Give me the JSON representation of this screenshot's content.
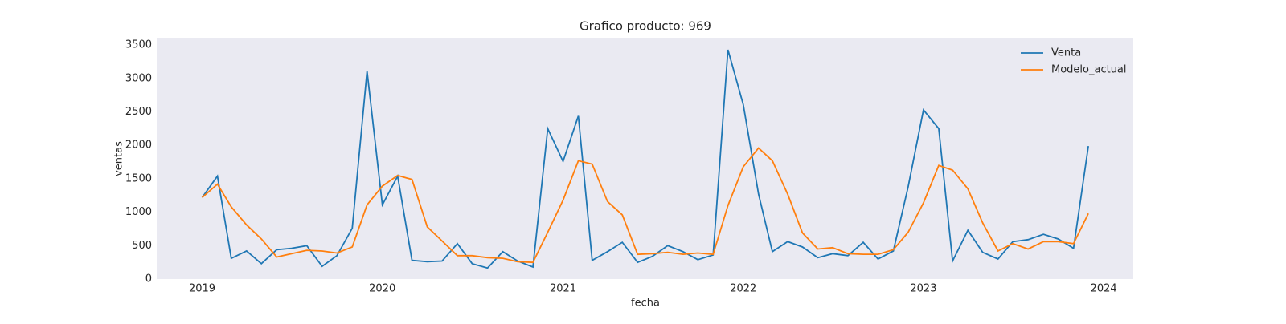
{
  "chart_data": {
    "type": "line",
    "title": "Grafico producto: 969",
    "xlabel": "fecha",
    "ylabel": "ventas",
    "x": [
      "2019-01",
      "2019-02",
      "2019-03",
      "2019-04",
      "2019-05",
      "2019-06",
      "2019-07",
      "2019-08",
      "2019-09",
      "2019-10",
      "2019-11",
      "2019-12",
      "2020-01",
      "2020-02",
      "2020-03",
      "2020-04",
      "2020-05",
      "2020-06",
      "2020-07",
      "2020-08",
      "2020-09",
      "2020-10",
      "2020-11",
      "2020-12",
      "2021-01",
      "2021-02",
      "2021-03",
      "2021-04",
      "2021-05",
      "2021-06",
      "2021-07",
      "2021-08",
      "2021-09",
      "2021-10",
      "2021-11",
      "2021-12",
      "2022-01",
      "2022-02",
      "2022-03",
      "2022-04",
      "2022-05",
      "2022-06",
      "2022-07",
      "2022-08",
      "2022-09",
      "2022-10",
      "2022-11",
      "2022-12",
      "2023-01",
      "2023-02",
      "2023-03",
      "2023-04",
      "2023-05",
      "2023-06",
      "2023-07",
      "2023-08",
      "2023-09",
      "2023-10",
      "2023-11",
      "2023-12"
    ],
    "series": [
      {
        "name": "Venta",
        "color": "#1f77b4",
        "values": [
          1220,
          1540,
          310,
          420,
          230,
          440,
          460,
          500,
          190,
          350,
          760,
          3110,
          1110,
          1540,
          280,
          260,
          270,
          530,
          230,
          165,
          410,
          270,
          180,
          2250,
          1760,
          2440,
          280,
          410,
          550,
          250,
          340,
          500,
          410,
          290,
          360,
          3430,
          2610,
          1270,
          410,
          560,
          480,
          320,
          380,
          350,
          550,
          300,
          420,
          1380,
          2530,
          2250,
          270,
          730,
          400,
          300,
          560,
          590,
          670,
          600,
          460,
          1990
        ]
      },
      {
        "name": "Modelo_actual",
        "color": "#ff7f0e",
        "values": [
          1220,
          1420,
          1080,
          810,
          600,
          330,
          380,
          430,
          420,
          390,
          480,
          1110,
          1390,
          1550,
          1490,
          780,
          570,
          350,
          350,
          320,
          310,
          260,
          250,
          700,
          1180,
          1770,
          1720,
          1160,
          960,
          370,
          380,
          400,
          370,
          390,
          370,
          1100,
          1680,
          1960,
          1770,
          1270,
          690,
          450,
          470,
          380,
          370,
          370,
          440,
          700,
          1140,
          1700,
          1630,
          1350,
          840,
          420,
          530,
          450,
          560,
          560,
          530,
          980
        ]
      }
    ],
    "xlim": [
      "2018-10",
      "2024-03"
    ],
    "xticks": [
      "2019",
      "2020",
      "2021",
      "2022",
      "2023",
      "2024"
    ],
    "ylim": [
      0,
      3610
    ],
    "yticks": [
      0,
      500,
      1000,
      1500,
      2000,
      2500,
      3000,
      3500
    ],
    "grid": false,
    "legend": "upper right"
  }
}
